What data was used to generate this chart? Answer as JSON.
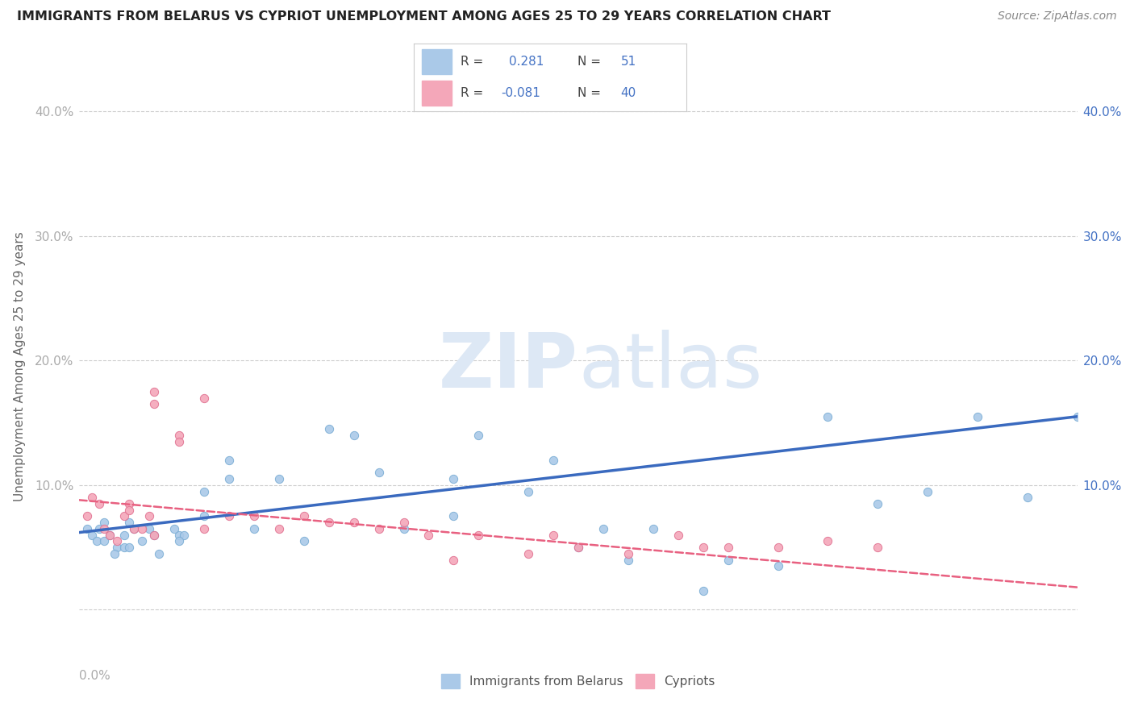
{
  "title": "IMMIGRANTS FROM BELARUS VS CYPRIOT UNEMPLOYMENT AMONG AGES 25 TO 29 YEARS CORRELATION CHART",
  "source": "Source: ZipAtlas.com",
  "ylabel": "Unemployment Among Ages 25 to 29 years",
  "xlim": [
    0.0,
    0.04
  ],
  "ylim": [
    -0.03,
    0.42
  ],
  "watermark": "ZIPatlas",
  "scatter_blue": {
    "x": [
      0.0003,
      0.0005,
      0.0007,
      0.001,
      0.0012,
      0.0008,
      0.001,
      0.0015,
      0.0018,
      0.0014,
      0.002,
      0.0022,
      0.0025,
      0.002,
      0.0018,
      0.0028,
      0.003,
      0.0032,
      0.004,
      0.0038,
      0.0042,
      0.004,
      0.005,
      0.005,
      0.006,
      0.006,
      0.007,
      0.008,
      0.009,
      0.01,
      0.011,
      0.012,
      0.013,
      0.015,
      0.015,
      0.016,
      0.018,
      0.019,
      0.02,
      0.021,
      0.022,
      0.023,
      0.025,
      0.026,
      0.028,
      0.03,
      0.032,
      0.034,
      0.036,
      0.038,
      0.04
    ],
    "y": [
      0.065,
      0.06,
      0.055,
      0.07,
      0.06,
      0.065,
      0.055,
      0.05,
      0.05,
      0.045,
      0.07,
      0.065,
      0.055,
      0.05,
      0.06,
      0.065,
      0.06,
      0.045,
      0.06,
      0.065,
      0.06,
      0.055,
      0.095,
      0.075,
      0.12,
      0.105,
      0.065,
      0.105,
      0.055,
      0.145,
      0.14,
      0.11,
      0.065,
      0.105,
      0.075,
      0.14,
      0.095,
      0.12,
      0.05,
      0.065,
      0.04,
      0.065,
      0.015,
      0.04,
      0.035,
      0.155,
      0.085,
      0.095,
      0.155,
      0.09,
      0.155
    ],
    "color": "#aac9e8",
    "edgecolor": "#7aadd4",
    "size": 55
  },
  "scatter_pink": {
    "x": [
      0.0003,
      0.0005,
      0.0008,
      0.001,
      0.0012,
      0.0015,
      0.0018,
      0.002,
      0.002,
      0.0022,
      0.0025,
      0.003,
      0.003,
      0.0028,
      0.003,
      0.004,
      0.004,
      0.005,
      0.005,
      0.006,
      0.007,
      0.008,
      0.009,
      0.01,
      0.011,
      0.012,
      0.013,
      0.014,
      0.015,
      0.016,
      0.018,
      0.019,
      0.02,
      0.022,
      0.024,
      0.025,
      0.026,
      0.028,
      0.03,
      0.032
    ],
    "y": [
      0.075,
      0.09,
      0.085,
      0.065,
      0.06,
      0.055,
      0.075,
      0.085,
      0.08,
      0.065,
      0.065,
      0.165,
      0.175,
      0.075,
      0.06,
      0.14,
      0.135,
      0.17,
      0.065,
      0.075,
      0.075,
      0.065,
      0.075,
      0.07,
      0.07,
      0.065,
      0.07,
      0.06,
      0.04,
      0.06,
      0.045,
      0.06,
      0.05,
      0.045,
      0.06,
      0.05,
      0.05,
      0.05,
      0.055,
      0.05
    ],
    "color": "#f4a7b9",
    "edgecolor": "#e07090",
    "size": 55
  },
  "trendline_blue": {
    "x": [
      0.0,
      0.04
    ],
    "y": [
      0.062,
      0.155
    ],
    "color": "#3a6abf",
    "linewidth": 2.5
  },
  "trendline_pink": {
    "x": [
      0.0,
      0.04
    ],
    "y": [
      0.088,
      0.018
    ],
    "color": "#e86080",
    "linewidth": 1.8,
    "linestyle": "dashed"
  },
  "ytick_vals": [
    0.0,
    0.1,
    0.2,
    0.3,
    0.4
  ],
  "ytick_labels_left": [
    "",
    "10.0%",
    "20.0%",
    "30.0%",
    "40.0%"
  ],
  "ytick_labels_right": [
    "",
    "10.0%",
    "20.0%",
    "30.0%",
    "40.0%"
  ],
  "background_color": "#ffffff",
  "grid_color": "#cccccc",
  "right_axis_color": "#4472c4",
  "left_axis_color": "#aaaaaa"
}
